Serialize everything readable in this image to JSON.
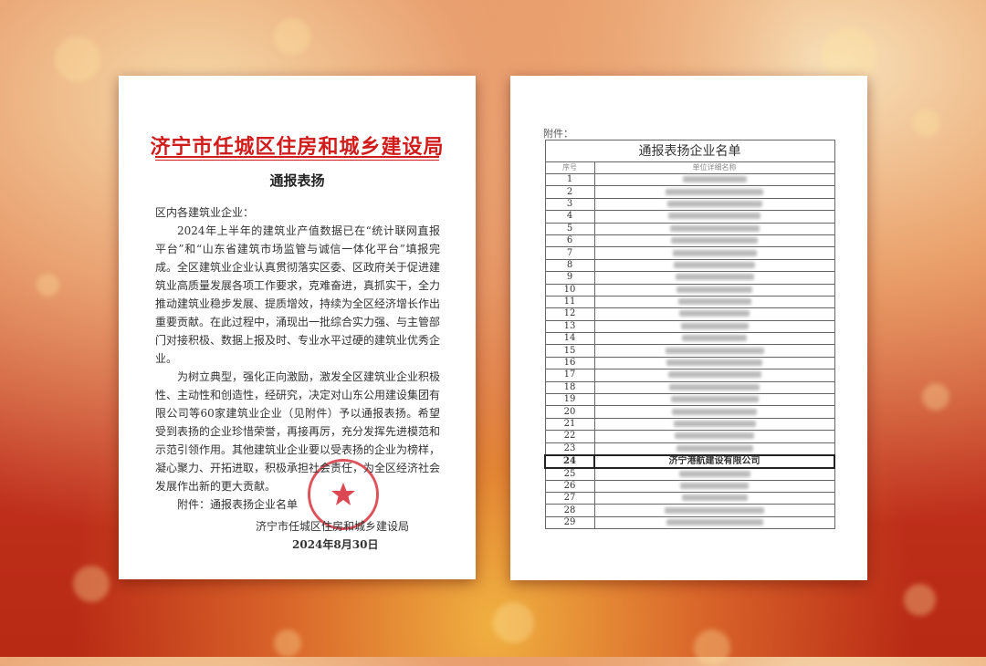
{
  "left_doc": {
    "header": "济宁市任城区住房和城乡建设局",
    "title": "通报表扬",
    "salutation": "区内各建筑业企业：",
    "paragraphs": [
      "2024年上半年的建筑业产值数据已在“统计联网直报平台”和“山东省建筑市场监管与诚信一体化平台”填报完成。全区建筑业企业认真贯彻落实区委、区政府关于促进建筑业高质量发展各项工作要求，克难奋进，真抓实干，全力推动建筑业稳步发展、提质增效，持续为全区经济增长作出重要贡献。在此过程中，涌现出一批综合实力强、与主管部门对接积极、数据上报及时、专业水平过硬的建筑业优秀企业。",
      "为树立典型，强化正向激励，激发全区建筑业企业积极性、主动性和创造性，经研究，决定对山东公用建设集团有限公司等60家建筑业企业（见附件）予以通报表扬。希望受到表扬的企业珍惜荣誉，再接再厉，充分发挥先进模范和示范引领作用。其他建筑业企业要以受表扬的企业为榜样，凝心聚力、开拓进取，积极承担社会责任，为全区经济社会发展作出新的更大贡献。"
    ],
    "attachment": "附件：通报表扬企业名单",
    "signature": "济宁市任城区住房和城乡建设局",
    "date": "2024年8月30日",
    "seal_text": "济宁市任城区住房和城乡建设局",
    "accent_color": "#d11c1c"
  },
  "right_doc": {
    "attachment_label": "附件：",
    "table_title": "通报表扬企业名单",
    "columns": [
      "序号",
      "单位详细名称"
    ],
    "rows": [
      {
        "no": "1"
      },
      {
        "no": "2"
      },
      {
        "no": "3"
      },
      {
        "no": "4"
      },
      {
        "no": "5"
      },
      {
        "no": "6"
      },
      {
        "no": "7"
      },
      {
        "no": "8"
      },
      {
        "no": "9"
      },
      {
        "no": "10"
      },
      {
        "no": "11"
      },
      {
        "no": "12"
      },
      {
        "no": "13"
      },
      {
        "no": "14"
      },
      {
        "no": "15"
      },
      {
        "no": "16"
      },
      {
        "no": "17"
      },
      {
        "no": "18"
      },
      {
        "no": "19"
      },
      {
        "no": "20"
      },
      {
        "no": "21"
      },
      {
        "no": "22"
      },
      {
        "no": "23"
      },
      {
        "no": "24",
        "name": "济宁港航建设有限公司",
        "highlight": true
      },
      {
        "no": "25"
      },
      {
        "no": "26"
      },
      {
        "no": "27"
      },
      {
        "no": "28"
      },
      {
        "no": "29"
      }
    ]
  }
}
